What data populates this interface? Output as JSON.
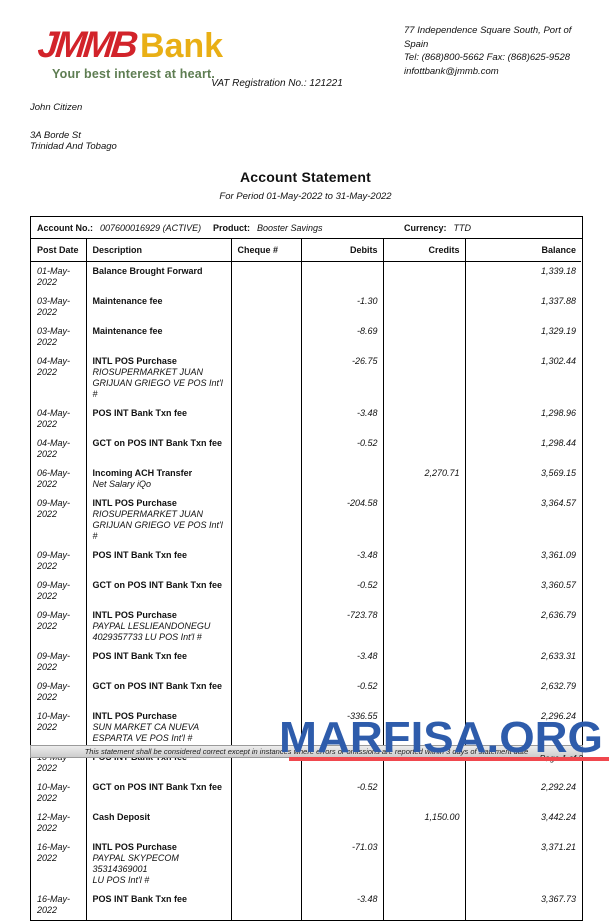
{
  "colors": {
    "brand-red": "#d2232a",
    "brand-gold": "#e9af15",
    "brand-green": "#5e7d52",
    "watermark-blue": "#2e5cab",
    "watermark-red": "#f0484e"
  },
  "brand": {
    "logo_text": "JMMB",
    "logo_suffix": "Bank",
    "tagline": "Your best interest at heart."
  },
  "bank_contact": {
    "address_line1": "77 Independence Square South, Port of",
    "address_line2": "Spain",
    "phone_line": "Tel: (868)800-5662 Fax: (868)625-9528",
    "email": "infottbank@jmmb.com"
  },
  "vat_line": "VAT Registration No.: 121221",
  "customer": {
    "name": "John Citizen",
    "address_line1": "3A Borde St",
    "address_line2": "Trinidad And Tobago"
  },
  "title": "Account Statement",
  "period_line": "For Period 01-May-2022 to 31-May-2022",
  "account_info": {
    "account_label": "Account No.:",
    "account_value": "007600016929 (ACTIVE)",
    "product_label": "Product:",
    "product_value": "Booster Savings",
    "currency_label": "Currency:",
    "currency_value": "TTD"
  },
  "table": {
    "headers": [
      "Post Date",
      "Description",
      "Cheque #",
      "Debits",
      "Credits",
      "Balance"
    ],
    "rows": [
      {
        "date": "01-May-2022",
        "desc": "Balance Brought Forward",
        "sub": "",
        "cheque": "",
        "debit": "",
        "credit": "",
        "balance": "1,339.18"
      },
      {
        "date": "03-May-2022",
        "desc": "Maintenance fee",
        "sub": "",
        "cheque": "",
        "debit": "-1.30",
        "credit": "",
        "balance": "1,337.88"
      },
      {
        "date": "03-May-2022",
        "desc": "Maintenance fee",
        "sub": "",
        "cheque": "",
        "debit": "-8.69",
        "credit": "",
        "balance": "1,329.19"
      },
      {
        "date": "04-May-2022",
        "desc": "INTL POS Purchase",
        "sub": "RIOSUPERMARKET JUAN\nGRIJUAN GRIEGO VE POS Int'l #",
        "cheque": "",
        "debit": "-26.75",
        "credit": "",
        "balance": "1,302.44"
      },
      {
        "date": "04-May-2022",
        "desc": "POS INT Bank Txn fee",
        "sub": "",
        "cheque": "",
        "debit": "-3.48",
        "credit": "",
        "balance": "1,298.96"
      },
      {
        "date": "04-May-2022",
        "desc": "GCT on POS INT Bank Txn fee",
        "sub": "",
        "cheque": "",
        "debit": "-0.52",
        "credit": "",
        "balance": "1,298.44"
      },
      {
        "date": "06-May-2022",
        "desc": "Incoming ACH Transfer",
        "sub": "Net Salary iQo",
        "cheque": "",
        "debit": "",
        "credit": "2,270.71",
        "balance": "3,569.15"
      },
      {
        "date": "09-May-2022",
        "desc": "INTL POS Purchase",
        "sub": "RIOSUPERMARKET JUAN\nGRIJUAN GRIEGO VE POS Int'l #",
        "cheque": "",
        "debit": "-204.58",
        "credit": "",
        "balance": "3,364.57"
      },
      {
        "date": "09-May-2022",
        "desc": "POS INT Bank Txn fee",
        "sub": "",
        "cheque": "",
        "debit": "-3.48",
        "credit": "",
        "balance": "3,361.09"
      },
      {
        "date": "09-May-2022",
        "desc": "GCT on POS INT Bank Txn fee",
        "sub": "",
        "cheque": "",
        "debit": "-0.52",
        "credit": "",
        "balance": "3,360.57"
      },
      {
        "date": "09-May-2022",
        "desc": "INTL POS Purchase",
        "sub": "PAYPAL LESLIEANDONEGU\n4029357733 LU POS Int'l #",
        "cheque": "",
        "debit": "-723.78",
        "credit": "",
        "balance": "2,636.79"
      },
      {
        "date": "09-May-2022",
        "desc": "POS INT Bank Txn fee",
        "sub": "",
        "cheque": "",
        "debit": "-3.48",
        "credit": "",
        "balance": "2,633.31"
      },
      {
        "date": "09-May-2022",
        "desc": "GCT on POS INT Bank Txn fee",
        "sub": "",
        "cheque": "",
        "debit": "-0.52",
        "credit": "",
        "balance": "2,632.79"
      },
      {
        "date": "10-May-2022",
        "desc": "INTL POS Purchase",
        "sub": "SUN MARKET CA NUEVA\nESPARTA VE POS Int'l #",
        "cheque": "",
        "debit": "-336.55",
        "credit": "",
        "balance": "2,296.24"
      },
      {
        "date": "10-May-2022",
        "desc": "POS INT Bank Txn fee",
        "sub": "",
        "cheque": "",
        "debit": "-3.48",
        "credit": "",
        "balance": "2,292.76"
      },
      {
        "date": "10-May-2022",
        "desc": "GCT on POS INT Bank Txn fee",
        "sub": "",
        "cheque": "",
        "debit": "-0.52",
        "credit": "",
        "balance": "2,292.24"
      },
      {
        "date": "12-May-2022",
        "desc": "Cash Deposit",
        "sub": "",
        "cheque": "",
        "debit": "",
        "credit": "1,150.00",
        "balance": "3,442.24"
      },
      {
        "date": "16-May-2022",
        "desc": "INTL POS Purchase",
        "sub": "PAYPAL SKYPECOM 35314369001\nLU POS Int'l #",
        "cheque": "",
        "debit": "-71.03",
        "credit": "",
        "balance": "3,371.21"
      },
      {
        "date": "16-May-2022",
        "desc": "POS INT Bank Txn fee",
        "sub": "",
        "cheque": "",
        "debit": "-3.48",
        "credit": "",
        "balance": "3,367.73"
      }
    ]
  },
  "footer": {
    "disclaimer": "This statement shall be considered correct except in instances where errors or omissions are reported within 3 days of statement date",
    "page_label": "Page 1 of 2"
  },
  "watermark": {
    "text": "MARFISA.ORG"
  }
}
